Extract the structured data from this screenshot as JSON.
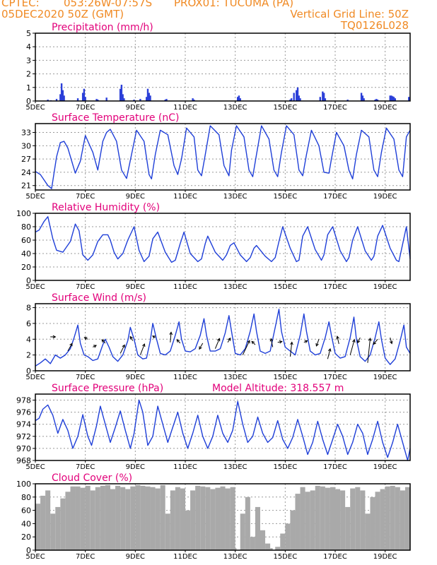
{
  "header": {
    "source": "CPTEC:",
    "coords": "053:26W-07:57S",
    "location": "PROX01: TUCUMA (PA)",
    "datetime": "05DEC2020 50Z (GMT)",
    "grid_note": "Vertical Grid Line: 50Z",
    "run_id": "TQ0126L028",
    "model_altitude": "Model Altitude: 318.557 m"
  },
  "colors": {
    "header": "#f08a24",
    "title": "#e2007a",
    "line": "#1f3fd8",
    "bars": "#2b3fd8",
    "cloud": "#a9a9a9",
    "arrow": "#000000"
  },
  "x_axis": {
    "days": [
      5,
      20
    ],
    "labels": [
      "5DEC",
      "7DEC",
      "9DEC",
      "11DEC",
      "13DEC",
      "15DEC",
      "17DEC",
      "19DEC"
    ],
    "label_days": [
      5,
      7,
      9,
      11,
      13,
      15,
      17,
      19
    ]
  },
  "chart_data": [
    {
      "id": "precip",
      "type": "bar",
      "title": "Precipitation (mm/h)",
      "ylim": [
        0,
        5
      ],
      "yticks": [
        0,
        1,
        2,
        3,
        4,
        5
      ],
      "x": [
        5.5,
        5.62,
        5.85,
        6.0,
        6.05,
        6.1,
        6.15,
        6.7,
        6.9,
        6.95,
        7.0,
        7.45,
        7.5,
        7.85,
        8.4,
        8.45,
        8.5,
        8.55,
        8.95,
        9.2,
        9.45,
        9.5,
        9.55,
        9.6,
        10.2,
        10.25,
        11.3,
        11.35,
        13.1,
        13.15,
        13.2,
        15.2,
        15.25,
        15.35,
        15.45,
        15.5,
        15.55,
        15.6,
        16.4,
        16.5,
        16.55,
        16.6,
        17.5,
        18.05,
        18.1,
        18.15,
        18.6,
        18.65,
        18.7,
        19.2,
        19.25,
        19.3,
        19.35,
        19.4,
        19.95
      ],
      "values": [
        0.1,
        0.05,
        0.15,
        0.5,
        1.3,
        0.8,
        0.4,
        0.2,
        0.6,
        0.9,
        0.3,
        0.15,
        0.1,
        0.25,
        0.9,
        1.2,
        0.5,
        0.2,
        0.1,
        0.15,
        0.3,
        0.9,
        0.6,
        0.4,
        0.1,
        0.15,
        0.2,
        0.1,
        0.3,
        0.4,
        0.2,
        0.1,
        0.2,
        0.6,
        0.8,
        1.0,
        0.4,
        0.2,
        0.3,
        0.7,
        0.6,
        0.2,
        0.1,
        0.6,
        0.4,
        0.2,
        0.1,
        0.15,
        0.1,
        0.4,
        0.4,
        0.35,
        0.3,
        0.2,
        0.3
      ]
    },
    {
      "id": "temp",
      "type": "line",
      "title": "Surface Temperature (nC)",
      "ylim": [
        20,
        35
      ],
      "yticks": [
        21,
        24,
        27,
        30,
        33
      ],
      "x": [
        5.0,
        5.2,
        5.5,
        5.65,
        5.85,
        6.0,
        6.15,
        6.3,
        6.6,
        6.8,
        7.0,
        7.3,
        7.5,
        7.7,
        7.85,
        8.0,
        8.25,
        8.45,
        8.65,
        8.85,
        9.05,
        9.35,
        9.55,
        9.65,
        9.8,
        10.0,
        10.3,
        10.55,
        10.7,
        10.85,
        11.05,
        11.35,
        11.5,
        11.65,
        11.8,
        12.0,
        12.35,
        12.55,
        12.75,
        12.85,
        13.05,
        13.35,
        13.55,
        13.7,
        13.85,
        14.05,
        14.35,
        14.55,
        14.7,
        14.85,
        15.05,
        15.35,
        15.55,
        15.7,
        15.85,
        16.05,
        16.35,
        16.55,
        16.75,
        16.85,
        17.05,
        17.35,
        17.55,
        17.7,
        17.85,
        18.05,
        18.35,
        18.55,
        18.7,
        18.85,
        19.05,
        19.35,
        19.55,
        19.7,
        19.85,
        20.0
      ],
      "values": [
        24.2,
        23.5,
        21.0,
        20.3,
        27.5,
        30.7,
        31.0,
        29.5,
        23.8,
        26.5,
        32.3,
        28.5,
        24.5,
        31.0,
        33.0,
        33.7,
        31.0,
        24.5,
        22.6,
        28.0,
        33.5,
        31.0,
        23.5,
        22.5,
        28.0,
        33.5,
        32.5,
        25.5,
        23.5,
        27.0,
        34.0,
        32.0,
        24.5,
        23.2,
        28.0,
        34.5,
        32.5,
        25.5,
        23.2,
        29.0,
        34.5,
        32.0,
        24.5,
        23.0,
        28.0,
        34.5,
        31.5,
        24.5,
        23.0,
        28.5,
        34.5,
        32.5,
        24.5,
        23.2,
        28.0,
        33.5,
        30.0,
        24.0,
        23.8,
        27.0,
        33.0,
        30.0,
        24.5,
        22.5,
        28.0,
        33.5,
        32.0,
        24.5,
        23.0,
        28.5,
        34.0,
        31.5,
        24.5,
        23.0,
        32.0,
        33.5
      ]
    },
    {
      "id": "rh",
      "type": "line",
      "title": "Relative Humidity (%)",
      "ylim": [
        0,
        100
      ],
      "yticks": [
        0,
        20,
        40,
        60,
        80,
        100
      ],
      "x": [
        5.0,
        5.15,
        5.35,
        5.5,
        5.7,
        5.85,
        6.1,
        6.4,
        6.6,
        6.75,
        6.9,
        7.1,
        7.3,
        7.5,
        7.7,
        7.9,
        8.0,
        8.15,
        8.3,
        8.5,
        8.7,
        8.95,
        9.15,
        9.35,
        9.55,
        9.7,
        9.9,
        10.2,
        10.45,
        10.6,
        10.8,
        10.95,
        11.2,
        11.5,
        11.65,
        11.8,
        11.9,
        12.2,
        12.5,
        12.65,
        12.8,
        12.95,
        13.2,
        13.45,
        13.6,
        13.75,
        13.85,
        14.2,
        14.45,
        14.6,
        14.75,
        14.9,
        15.2,
        15.45,
        15.55,
        15.7,
        15.9,
        16.2,
        16.45,
        16.55,
        16.7,
        16.9,
        17.2,
        17.45,
        17.55,
        17.7,
        17.9,
        18.2,
        18.45,
        18.55,
        18.7,
        18.9,
        19.2,
        19.45,
        19.55,
        19.7,
        19.85,
        20.0
      ],
      "values": [
        72,
        75,
        88,
        95,
        62,
        45,
        42,
        58,
        84,
        74,
        38,
        30,
        38,
        58,
        68,
        68,
        60,
        42,
        32,
        40,
        60,
        80,
        45,
        28,
        36,
        62,
        72,
        42,
        27,
        30,
        55,
        72,
        40,
        28,
        32,
        55,
        66,
        42,
        30,
        38,
        52,
        56,
        38,
        28,
        34,
        48,
        52,
        36,
        28,
        34,
        58,
        80,
        48,
        28,
        30,
        66,
        80,
        46,
        30,
        38,
        68,
        80,
        44,
        28,
        34,
        60,
        80,
        44,
        30,
        36,
        66,
        82,
        48,
        30,
        28,
        54,
        80,
        32
      ]
    },
    {
      "id": "wind",
      "type": "line",
      "title": "Surface Wind (m/s)",
      "ylim": [
        0,
        8.5
      ],
      "yticks": [
        0,
        2,
        4,
        6,
        8
      ],
      "x": [
        5.0,
        5.2,
        5.4,
        5.6,
        5.8,
        6.0,
        6.2,
        6.4,
        6.55,
        6.7,
        6.8,
        6.95,
        7.1,
        7.3,
        7.5,
        7.7,
        7.8,
        7.95,
        8.1,
        8.3,
        8.5,
        8.7,
        8.8,
        8.95,
        9.1,
        9.3,
        9.45,
        9.6,
        9.7,
        9.85,
        10.0,
        10.2,
        10.4,
        10.6,
        10.75,
        10.85,
        11.0,
        11.2,
        11.4,
        11.6,
        11.75,
        11.85,
        12.0,
        12.2,
        12.4,
        12.6,
        12.75,
        12.85,
        13.0,
        13.2,
        13.4,
        13.6,
        13.75,
        13.85,
        14.0,
        14.2,
        14.4,
        14.6,
        14.75,
        14.85,
        15.0,
        15.2,
        15.4,
        15.6,
        15.75,
        15.85,
        16.0,
        16.2,
        16.4,
        16.6,
        16.75,
        16.85,
        17.0,
        17.2,
        17.4,
        17.6,
        17.75,
        17.85,
        18.0,
        18.2,
        18.4,
        18.6,
        18.75,
        18.85,
        19.0,
        19.2,
        19.4,
        19.6,
        19.75,
        19.85,
        20.0
      ],
      "values": [
        0.6,
        1.0,
        1.5,
        0.9,
        2.0,
        1.6,
        2.0,
        2.8,
        4.2,
        5.8,
        3.5,
        2.0,
        1.8,
        1.3,
        1.5,
        3.3,
        4.0,
        3.0,
        1.8,
        1.2,
        2.0,
        3.8,
        5.5,
        4.0,
        2.0,
        1.5,
        1.6,
        3.8,
        6.0,
        4.0,
        2.2,
        2.0,
        2.5,
        4.5,
        6.2,
        4.0,
        2.5,
        2.4,
        2.8,
        4.5,
        6.6,
        4.5,
        2.5,
        2.5,
        2.8,
        4.8,
        7.0,
        5.0,
        2.2,
        2.0,
        2.8,
        5.0,
        7.2,
        5.0,
        2.5,
        2.2,
        2.5,
        5.5,
        7.8,
        5.0,
        3.0,
        2.5,
        2.0,
        4.5,
        7.2,
        5.0,
        2.5,
        2.0,
        2.2,
        4.2,
        6.2,
        4.5,
        2.2,
        1.6,
        1.8,
        4.2,
        6.8,
        4.0,
        1.8,
        1.2,
        2.0,
        4.2,
        6.2,
        4.0,
        1.6,
        0.8,
        1.5,
        3.8,
        5.8,
        3.0,
        2.2
      ],
      "arrows": [
        {
          "day": 5.6,
          "y": 4.3,
          "u": 0.6,
          "v": 0.0
        },
        {
          "day": 6.3,
          "y": 2.5,
          "u": 0.5,
          "v": 0.9
        },
        {
          "day": 7.1,
          "y": 4.0,
          "u": -0.4,
          "v": 0.2
        },
        {
          "day": 7.3,
          "y": 3.0,
          "u": 0.4,
          "v": 0.2
        },
        {
          "day": 7.8,
          "y": 3.5,
          "u": -0.4,
          "v": 0.4
        },
        {
          "day": 8.4,
          "y": 2.2,
          "u": 0.5,
          "v": 1.0
        },
        {
          "day": 8.9,
          "y": 3.8,
          "u": -0.3,
          "v": 0.5
        },
        {
          "day": 9.2,
          "y": 2.0,
          "u": 0.5,
          "v": 1.3
        },
        {
          "day": 9.8,
          "y": 4.2,
          "u": -0.3,
          "v": 0.2
        },
        {
          "day": 10.4,
          "y": 3.6,
          "u": 0.1,
          "v": 1.2
        },
        {
          "day": 10.8,
          "y": 3.5,
          "u": -0.4,
          "v": 0.4
        },
        {
          "day": 11.7,
          "y": 3.5,
          "u": -0.4,
          "v": -0.7
        },
        {
          "day": 12.2,
          "y": 2.8,
          "u": 0.5,
          "v": 1.2
        },
        {
          "day": 12.7,
          "y": 3.6,
          "u": 0.3,
          "v": 0.5
        },
        {
          "day": 13.3,
          "y": 2.0,
          "u": 0.8,
          "v": 1.7
        },
        {
          "day": 13.8,
          "y": 3.3,
          "u": -0.4,
          "v": 0.4
        },
        {
          "day": 14.5,
          "y": 3.0,
          "u": -0.2,
          "v": 1.0
        },
        {
          "day": 14.7,
          "y": 3.6,
          "u": 0.5,
          "v": 0.1
        },
        {
          "day": 15.2,
          "y": 1.8,
          "u": 0.2,
          "v": 1.7
        },
        {
          "day": 15.75,
          "y": 3.6,
          "u": 0.4,
          "v": 0.2
        },
        {
          "day": 16.35,
          "y": 4.0,
          "u": -0.3,
          "v": -0.8
        },
        {
          "day": 16.7,
          "y": 1.5,
          "u": 0.3,
          "v": 1.2
        },
        {
          "day": 17.15,
          "y": 3.4,
          "u": -0.2,
          "v": 0.9
        },
        {
          "day": 17.6,
          "y": 2.0,
          "u": 0.5,
          "v": 1.8
        },
        {
          "day": 18.0,
          "y": 4.2,
          "u": -0.3,
          "v": -0.6
        },
        {
          "day": 18.3,
          "y": 1.0,
          "u": 0.3,
          "v": 2.9
        },
        {
          "day": 18.7,
          "y": 4.0,
          "u": -0.5,
          "v": -0.6
        },
        {
          "day": 19.2,
          "y": 4.2,
          "u": 0.2,
          "v": -0.7
        }
      ]
    },
    {
      "id": "pressure",
      "type": "line",
      "title": "Surface Pressure (hPa)",
      "ylim": [
        968,
        979
      ],
      "yticks": [
        968,
        970,
        972,
        974,
        976,
        978
      ],
      "x": [
        5.0,
        5.15,
        5.3,
        5.5,
        5.7,
        5.9,
        6.1,
        6.3,
        6.5,
        6.7,
        6.9,
        7.1,
        7.25,
        7.45,
        7.6,
        7.8,
        8.0,
        8.2,
        8.4,
        8.6,
        8.8,
        8.95,
        9.15,
        9.3,
        9.5,
        9.7,
        9.9,
        10.1,
        10.3,
        10.5,
        10.7,
        10.9,
        11.1,
        11.3,
        11.5,
        11.7,
        11.9,
        12.1,
        12.3,
        12.5,
        12.7,
        12.9,
        13.1,
        13.3,
        13.5,
        13.7,
        13.9,
        14.1,
        14.3,
        14.5,
        14.7,
        14.9,
        15.1,
        15.3,
        15.5,
        15.7,
        15.9,
        16.1,
        16.3,
        16.5,
        16.7,
        16.9,
        17.1,
        17.3,
        17.5,
        17.7,
        17.9,
        18.1,
        18.3,
        18.5,
        18.7,
        18.9,
        19.1,
        19.3,
        19.5,
        19.7,
        19.9,
        20.0
      ],
      "values": [
        974.6,
        975.0,
        976.5,
        977.2,
        975.5,
        972.5,
        974.8,
        973.0,
        970.0,
        972.0,
        975.6,
        972.0,
        970.5,
        973.8,
        977.0,
        974.0,
        971.0,
        973.5,
        976.2,
        973.0,
        970.0,
        972.5,
        978.0,
        976.0,
        970.5,
        972.0,
        977.0,
        974.0,
        971.0,
        973.5,
        976.0,
        972.5,
        970.0,
        972.5,
        975.5,
        972.0,
        970.0,
        972.0,
        975.5,
        972.5,
        971.0,
        973.0,
        977.8,
        974.0,
        971.0,
        972.0,
        975.2,
        972.5,
        971.0,
        971.8,
        974.6,
        971.5,
        970.0,
        971.8,
        974.8,
        972.0,
        969.0,
        971.0,
        974.5,
        971.5,
        969.0,
        971.5,
        974.0,
        972.0,
        969.0,
        971.0,
        974.0,
        972.5,
        969.0,
        971.5,
        974.5,
        971.0,
        968.5,
        971.0,
        974.0,
        971.0,
        968.0,
        970.0
      ]
    },
    {
      "id": "cloud",
      "type": "area",
      "title": "Cloud Cover (%)",
      "ylim": [
        0,
        100
      ],
      "yticks": [
        0,
        20,
        40,
        60,
        80,
        100
      ],
      "x": [
        5.0,
        5.2,
        5.4,
        5.6,
        5.8,
        6.0,
        6.2,
        6.4,
        6.6,
        6.8,
        7.0,
        7.2,
        7.4,
        7.6,
        7.8,
        8.0,
        8.2,
        8.4,
        8.6,
        8.8,
        9.0,
        9.2,
        9.4,
        9.6,
        9.8,
        10.0,
        10.2,
        10.4,
        10.6,
        10.8,
        11.0,
        11.2,
        11.4,
        11.6,
        11.8,
        12.0,
        12.2,
        12.4,
        12.6,
        12.8,
        13.0,
        13.05,
        13.2,
        13.4,
        13.6,
        13.8,
        14.0,
        14.2,
        14.4,
        14.5,
        14.6,
        14.8,
        15.0,
        15.2,
        15.4,
        15.6,
        15.8,
        16.0,
        16.2,
        16.4,
        16.6,
        16.8,
        17.0,
        17.2,
        17.4,
        17.6,
        17.8,
        18.0,
        18.2,
        18.4,
        18.6,
        18.8,
        19.0,
        19.2,
        19.4,
        19.6,
        19.8,
        20.0
      ],
      "values": [
        70,
        82,
        90,
        55,
        65,
        78,
        88,
        96,
        96,
        94,
        97,
        90,
        95,
        97,
        98,
        92,
        97,
        95,
        92,
        96,
        98,
        97,
        96,
        95,
        93,
        98,
        55,
        90,
        95,
        93,
        60,
        90,
        97,
        96,
        95,
        92,
        94,
        96,
        93,
        95,
        3,
        0,
        55,
        80,
        20,
        65,
        30,
        10,
        3,
        0,
        5,
        25,
        40,
        60,
        85,
        95,
        88,
        90,
        97,
        96,
        94,
        95,
        92,
        90,
        65,
        93,
        95,
        90,
        55,
        80,
        88,
        92,
        96,
        97,
        95,
        90,
        95,
        97
      ]
    }
  ]
}
